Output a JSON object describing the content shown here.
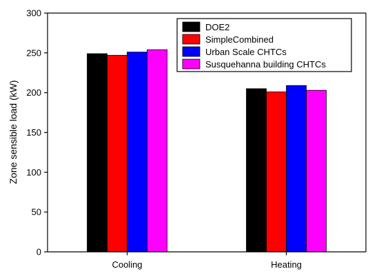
{
  "chart_data": {
    "type": "bar",
    "title": "",
    "xlabel": "",
    "ylabel": "Zone sensible load (kW)",
    "categories": [
      "Cooling",
      "Heating"
    ],
    "ylim": [
      0,
      300
    ],
    "yticks": [
      0,
      50,
      100,
      150,
      200,
      250,
      300
    ],
    "grid": false,
    "legend_position": "top-right",
    "series": [
      {
        "name": "DOE2",
        "color": "#000000",
        "values": [
          249,
          205
        ]
      },
      {
        "name": "SimpleCombined",
        "color": "#ff0000",
        "values": [
          247,
          201
        ]
      },
      {
        "name": "Urban Scale CHTCs",
        "color": "#0000ff",
        "values": [
          251,
          209
        ]
      },
      {
        "name": "Susquehanna building CHTCs",
        "color": "#ff00ff",
        "values": [
          254,
          203
        ]
      }
    ]
  }
}
